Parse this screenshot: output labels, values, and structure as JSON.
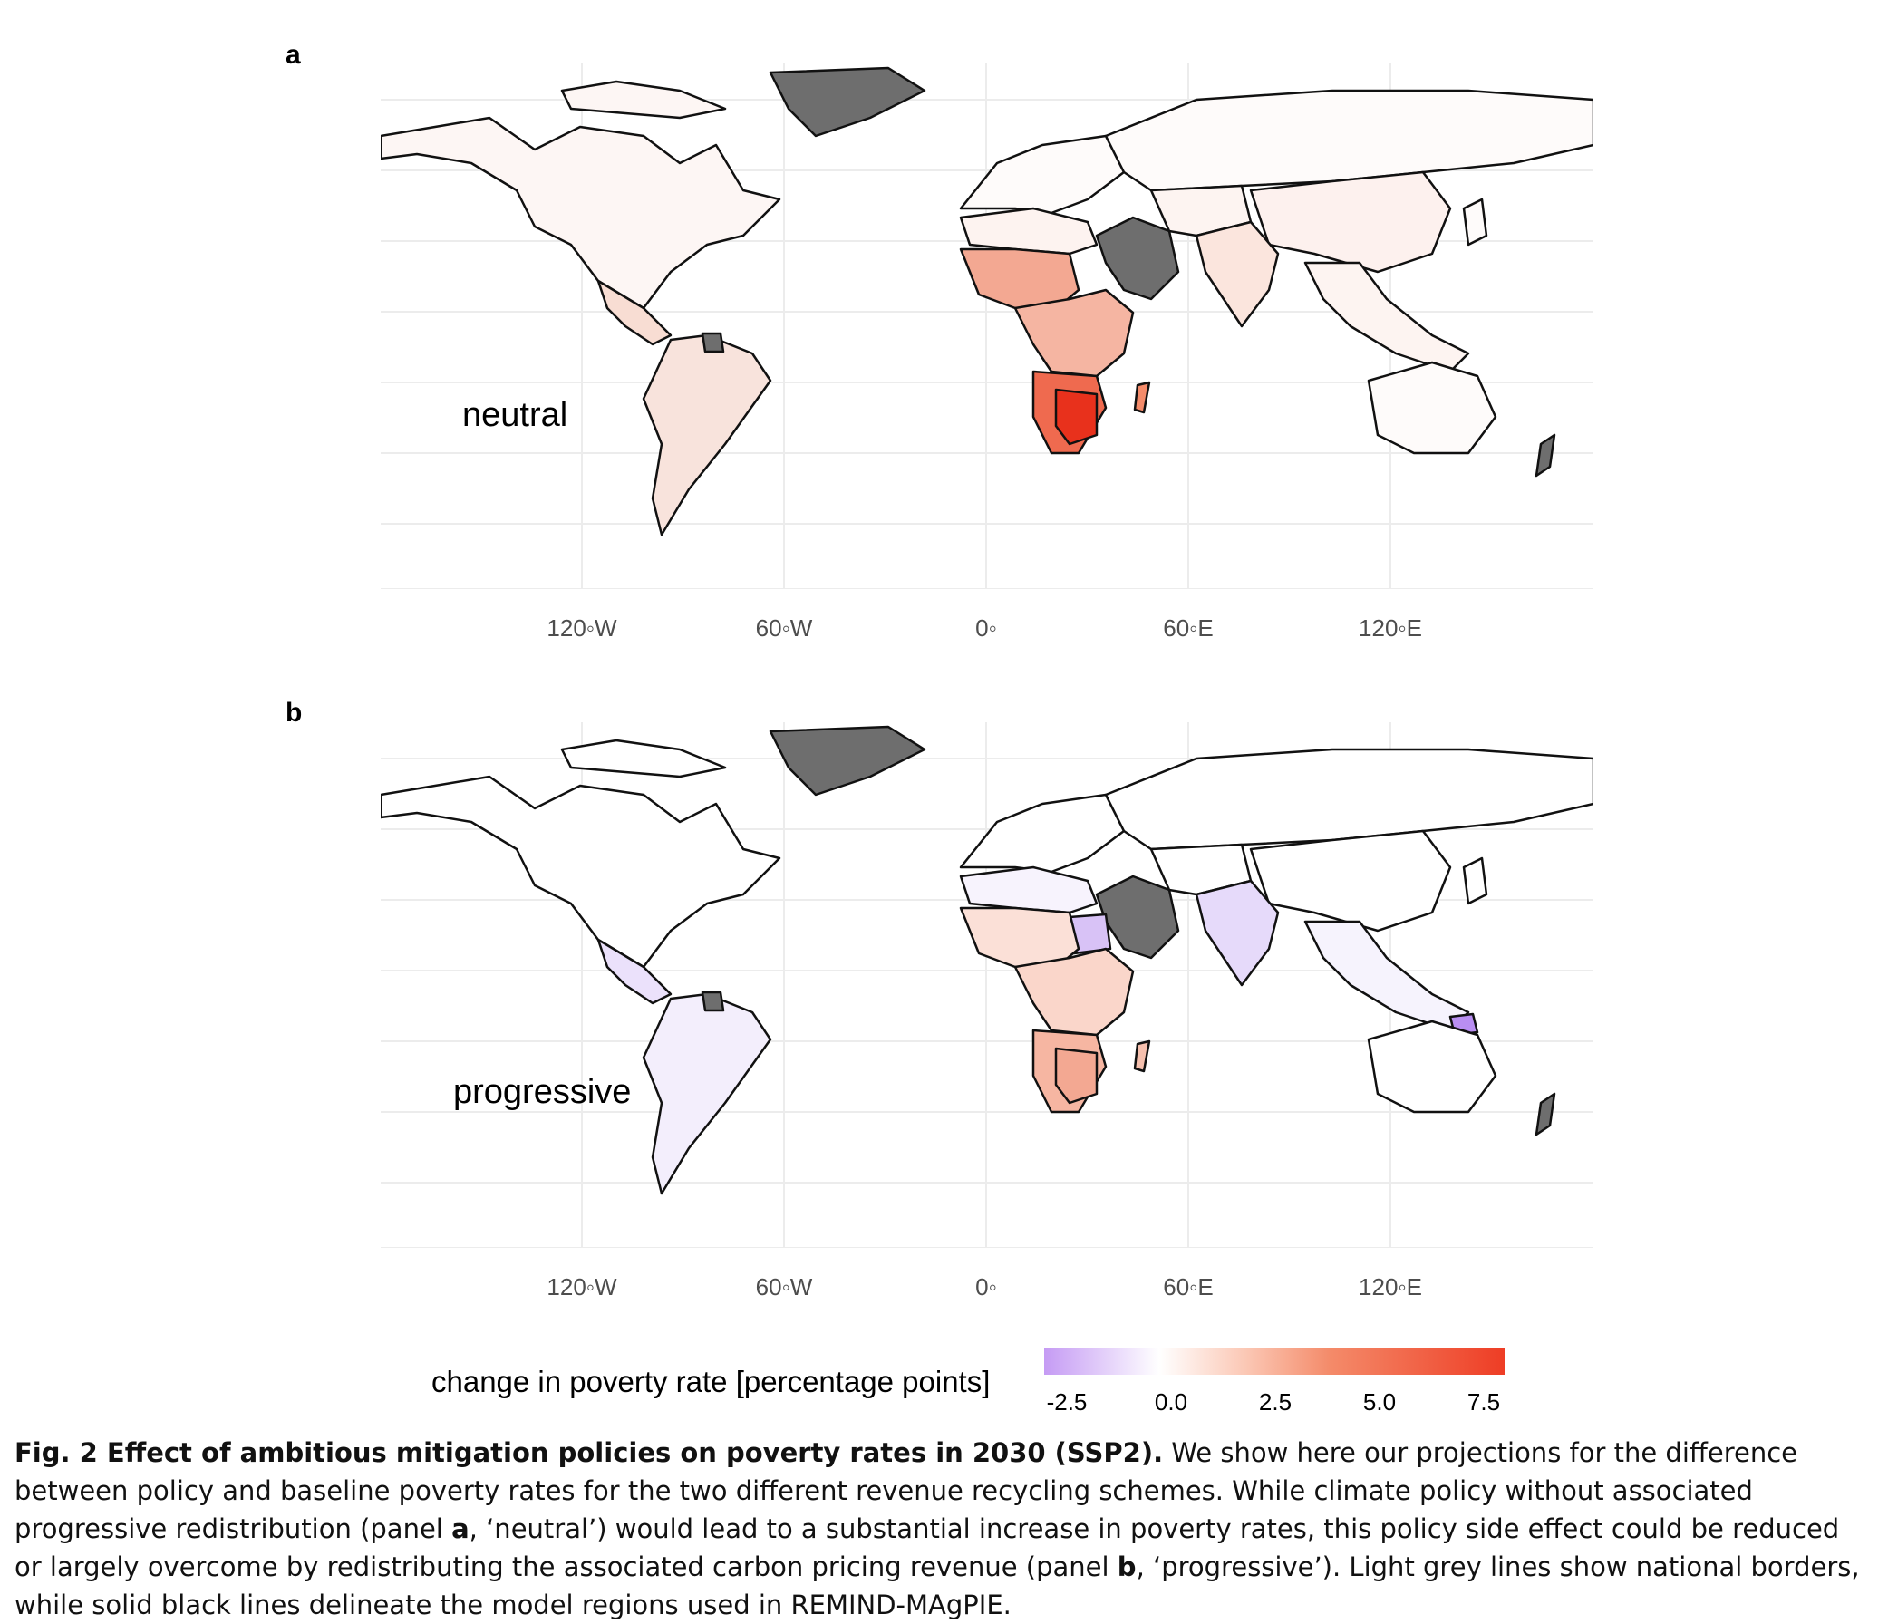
{
  "panels": [
    {
      "letter": "a",
      "label": "neutral"
    },
    {
      "letter": "b",
      "label": "progressive"
    }
  ],
  "longitude_ticks": [
    "120◦W",
    "60◦W",
    "0◦",
    "60◦E",
    "120◦E"
  ],
  "legend": {
    "title": "change in poverty rate [percentage points]",
    "ticks": [
      "-2.5",
      "0.0",
      "2.5",
      "5.0",
      "7.5"
    ],
    "colors": {
      "low": "#c59bf4",
      "mid": "#ffffff",
      "high": "#ee3d25",
      "missing": "#6e6e6e"
    }
  },
  "caption": {
    "heading": "Fig. 2 Effect of ambitious mitigation policies on poverty rates in 2030 (SSP2).",
    "text_1": " We show here our projections for the difference between policy and baseline poverty rates for the two different revenue recycling schemes. While climate policy without associated progressive redistribution (panel ",
    "bold_a": "a",
    "text_2": ", ‘neutral’) would lead to a substantial increase in poverty rates, this policy side effect could be reduced or largely overcome by redistributing the associated carbon pricing revenue (panel ",
    "bold_b": "b",
    "text_3": ", ‘progressive’). Light grey lines show national borders, while solid black lines delineate the model regions used in REMIND-MAgPIE."
  }
}
